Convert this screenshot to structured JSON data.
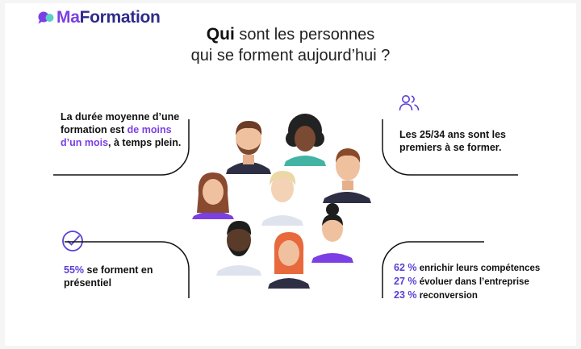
{
  "brand": {
    "logo_part1": "Ma",
    "logo_part2": "Formation",
    "primary_color": "#7b3fe4",
    "secondary_color": "#2f2a8c"
  },
  "title": {
    "bold": "Qui",
    "line1_rest": " sont les personnes",
    "line2": "qui se forment aujourd’hui ?"
  },
  "facts": {
    "duration": {
      "text_before": "La durée moyenne d’une formation est ",
      "highlight": "de moins d’un mois",
      "text_after": ", à temps plein."
    },
    "age": {
      "icon": "users-icon",
      "text": "Les 25/34 ans sont les premiers à se former."
    },
    "presentiel": {
      "icon": "check-circle-icon",
      "pct": "55%",
      "text": " se forment en présentiel"
    },
    "motivations": [
      {
        "pct": "62 %",
        "label": "enrichir leurs compétences"
      },
      {
        "pct": "27 %",
        "label": "évoluer dans l’entreprise"
      },
      {
        "pct": "23 %",
        "label": "reconversion"
      }
    ]
  }
}
